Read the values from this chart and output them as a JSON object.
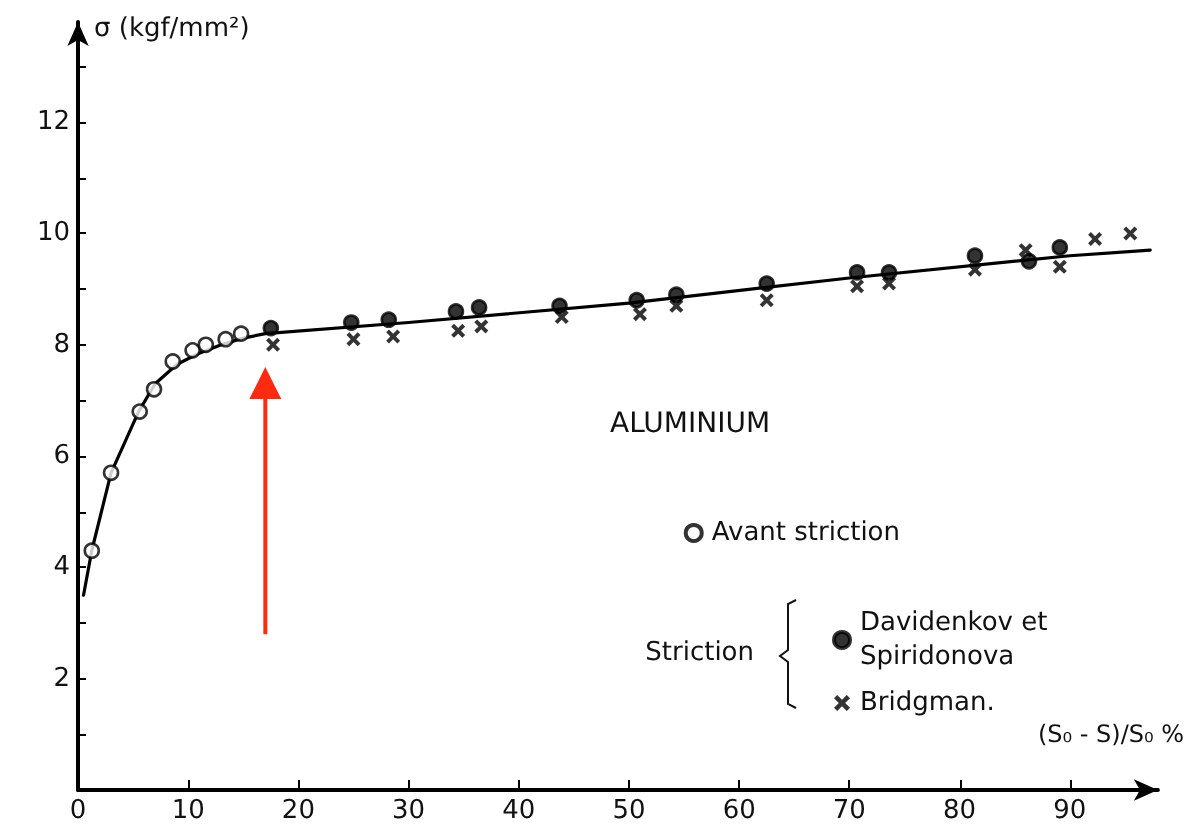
{
  "chart_data": {
    "type": "scatter",
    "title": "ALUMINIUM",
    "xlabel": "(S₀ - S)/S₀ %",
    "ylabel": "σ (kgf/mm²)",
    "annotations": [
      "Striction"
    ],
    "xlim": [
      0,
      98
    ],
    "ylim": [
      0,
      13.8
    ],
    "xticks": [
      0,
      10,
      20,
      30,
      40,
      50,
      60,
      70,
      80,
      90
    ],
    "yticks": [
      {
        "value": 1,
        "label": null
      },
      2,
      {
        "value": 3,
        "label": null
      },
      4,
      {
        "value": 5,
        "label": null
      },
      6,
      {
        "value": 7,
        "label": null
      },
      8,
      {
        "value": 9,
        "label": null
      },
      10,
      {
        "value": 11,
        "label": null
      },
      12,
      {
        "value": 13,
        "label": null
      }
    ],
    "grid": false,
    "legend": "right",
    "series": [
      {
        "type": "line",
        "color": "#000000",
        "marker": "none",
        "x": [
          0.5,
          1.25,
          3,
          5.5,
          7,
          9,
          11,
          13,
          15,
          17,
          30,
          50,
          70,
          90,
          97.3
        ],
        "values": [
          3.5,
          4.3,
          5.7,
          6.8,
          7.3,
          7.65,
          7.85,
          8.0,
          8.12,
          8.2,
          8.4,
          8.75,
          9.2,
          9.6,
          9.7
        ]
      },
      {
        "name": "Avant striction",
        "color": "#ffffff",
        "marker": "circle",
        "x": [
          1.25,
          3,
          5.6,
          6.9,
          8.6,
          10.4,
          11.6,
          13.4,
          14.8
        ],
        "values": [
          4.3,
          5.7,
          6.8,
          7.2,
          7.7,
          7.9,
          8.0,
          8.1,
          8.2
        ]
      },
      {
        "name": "Davidenkov et Spiridonova",
        "color": "#000000",
        "marker": "circle",
        "x": [
          17.5,
          24.8,
          28.2,
          34.3,
          36.4,
          43.7,
          50.7,
          54.3,
          62.5,
          70.7,
          73.6,
          81.4,
          86.3,
          89.1
        ],
        "values": [
          8.3,
          8.4,
          8.45,
          8.6,
          8.67,
          8.7,
          8.8,
          8.9,
          9.1,
          9.3,
          9.3,
          9.6,
          9.5,
          9.75
        ]
      },
      {
        "name": "Bridgman.",
        "color": "#000000",
        "marker": "cross",
        "x": [
          17.7,
          25,
          28.6,
          34.5,
          36.6,
          43.9,
          51,
          54.3,
          62.5,
          70.7,
          73.6,
          81.4,
          86,
          89.1,
          92.3,
          95.5
        ],
        "values": [
          8.0,
          8.1,
          8.15,
          8.25,
          8.33,
          8.5,
          8.55,
          8.7,
          8.8,
          9.05,
          9.1,
          9.35,
          9.7,
          9.4,
          9.9,
          10.0
        ]
      }
    ]
  }
}
